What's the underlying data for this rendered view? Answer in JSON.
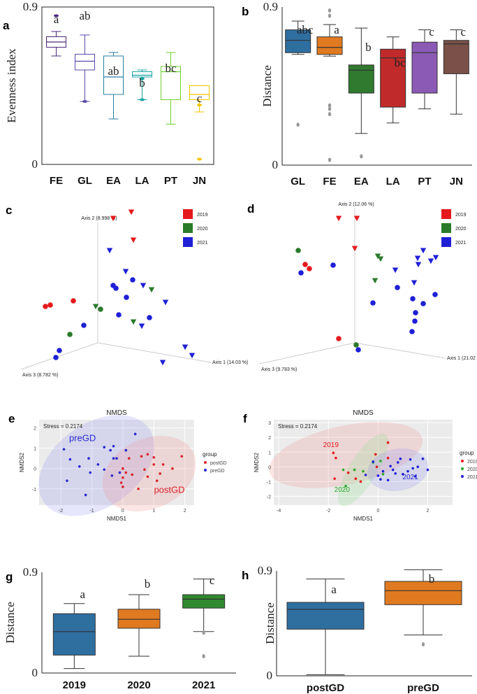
{
  "colors": {
    "FE": "#4b2a7a",
    "GL": "#5b4aa8",
    "EA": "#2a7fa0",
    "LA": "#1aa3a3",
    "PT": "#6ed12e",
    "JN": "#f2c400",
    "b_GL": "#2e6fa0",
    "b_FE": "#e07a20",
    "b_EA": "#2f7a2f",
    "b_LA": "#c02a2a",
    "b_PT": "#8a5ab5",
    "b_JN": "#7a5048",
    "y2019": "#e41a1c",
    "y2020": "#2a7a2a",
    "y2021": "#1f1fd6",
    "post": "#d8232a",
    "pre": "#2828d0",
    "g2019": "#2e6fa0",
    "g2020": "#e07a20",
    "g2021": "#2f8a2f",
    "postGD": "#2e6fa0",
    "preGD": "#e07a20"
  },
  "panels": {
    "a": "a",
    "b": "b",
    "c": "c",
    "d": "d",
    "e": "e",
    "f": "f",
    "g": "g",
    "h": "h"
  },
  "chart_data": [
    {
      "id": "a",
      "type": "box",
      "ylabel": "Evenness index",
      "yticks": [
        "0.9",
        "0"
      ],
      "ylim": [
        0,
        0.9
      ],
      "categories": [
        "FE",
        "GL",
        "EA",
        "LA",
        "PT",
        "JN"
      ],
      "letters": [
        "a",
        "ab",
        "ab",
        "b",
        "bc",
        "c"
      ],
      "boxes": [
        {
          "min": 0.62,
          "q1": 0.67,
          "median": 0.7,
          "q3": 0.73,
          "max": 0.76,
          "outliers": [
            0.85
          ]
        },
        {
          "min": 0.36,
          "q1": 0.54,
          "median": 0.59,
          "q3": 0.63,
          "max": 0.74,
          "outliers": [
            0.36
          ]
        },
        {
          "min": 0.26,
          "q1": 0.4,
          "median": 0.5,
          "q3": 0.62,
          "max": 0.64,
          "outliers": []
        },
        {
          "min": 0.37,
          "q1": 0.5,
          "median": 0.51,
          "q3": 0.53,
          "max": 0.54,
          "outliers": [
            0.37,
            0.49
          ]
        },
        {
          "min": 0.23,
          "q1": 0.37,
          "median": 0.53,
          "q3": 0.56,
          "max": 0.64,
          "outliers": []
        },
        {
          "min": 0.3,
          "q1": 0.37,
          "median": 0.4,
          "q3": 0.45,
          "max": 0.45,
          "outliers": [
            0.34,
            0.03
          ]
        }
      ]
    },
    {
      "id": "b",
      "type": "box",
      "ylabel": "Distance",
      "yticks": [
        "0.9",
        "0"
      ],
      "ylim": [
        0,
        0.9
      ],
      "categories": [
        "GL",
        "FE",
        "EA",
        "LA",
        "PT",
        "JN"
      ],
      "letters": [
        "abc",
        "a",
        "b",
        "bc",
        "c",
        "c"
      ],
      "boxes": [
        {
          "min": 0.63,
          "q1": 0.64,
          "median": 0.71,
          "q3": 0.77,
          "max": 0.82,
          "outliers": [
            0.23
          ]
        },
        {
          "min": 0.62,
          "q1": 0.63,
          "median": 0.67,
          "q3": 0.73,
          "max": 0.8,
          "outliers": [
            0.88,
            0.85,
            0.34,
            0.32,
            0.29,
            0.03
          ]
        },
        {
          "min": 0.18,
          "q1": 0.41,
          "median": 0.54,
          "q3": 0.57,
          "max": 0.78,
          "outliers": [
            0.05
          ]
        },
        {
          "min": 0.24,
          "q1": 0.33,
          "median": 0.61,
          "q3": 0.66,
          "max": 0.73,
          "outliers": []
        },
        {
          "min": 0.32,
          "q1": 0.41,
          "median": 0.64,
          "q3": 0.7,
          "max": 0.77,
          "outliers": []
        },
        {
          "min": 0.29,
          "q1": 0.52,
          "median": 0.69,
          "q3": 0.71,
          "max": 0.77,
          "outliers": []
        }
      ]
    },
    {
      "id": "c",
      "type": "scatter3d",
      "axes": [
        "Axis 2 (8.998 %)",
        "Axis 3 (8.782 %)",
        "Axis 1 (14.03 %)"
      ],
      "legend": [
        "2019",
        "2020",
        "2021"
      ]
    },
    {
      "id": "d",
      "type": "scatter3d",
      "axes": [
        "Axis 2 (12.06 %)",
        "Axis 3 (9.783 %)",
        "Axis 1 (21.02 %)"
      ],
      "legend": [
        "2019",
        "2020",
        "2021"
      ]
    },
    {
      "id": "e",
      "type": "scatter",
      "title": "NMDS",
      "stress": "Stress = 0.2174",
      "xlabel": "NMDS1",
      "ylabel": "NMDS2",
      "xticks": [
        -2,
        -1,
        0,
        1,
        2
      ],
      "yticks": [
        -1,
        0,
        1,
        2
      ],
      "xlim": [
        -2.7,
        2.3
      ],
      "ylim": [
        -1.8,
        2.4
      ],
      "legend_title": "group",
      "series": [
        {
          "name": "postGD",
          "points": [
            [
              0.0,
              -0.9
            ],
            [
              -0.05,
              -0.7
            ],
            [
              0.0,
              -0.45
            ],
            [
              0.1,
              -0.2
            ],
            [
              0.0,
              0.0
            ],
            [
              0.2,
              0.5
            ],
            [
              0.3,
              -0.3
            ],
            [
              0.5,
              -1.0
            ],
            [
              0.8,
              -0.4
            ],
            [
              0.7,
              -0.05
            ],
            [
              1.0,
              0.2
            ],
            [
              1.1,
              -0.6
            ],
            [
              1.2,
              -0.25
            ],
            [
              1.3,
              0.2
            ],
            [
              1.6,
              0.0
            ],
            [
              1.9,
              0.6
            ],
            [
              0.6,
              0.6
            ],
            [
              1.0,
              0.55
            ],
            [
              0.8,
              0.7
            ]
          ]
        },
        {
          "name": "preGD",
          "points": [
            [
              -1.9,
              0.95
            ],
            [
              -1.8,
              -0.6
            ],
            [
              -1.7,
              0.45
            ],
            [
              -1.4,
              0.1
            ],
            [
              -1.1,
              0.5
            ],
            [
              -1.05,
              -0.2
            ],
            [
              -1.2,
              -1.3
            ],
            [
              -0.8,
              0.2
            ],
            [
              -0.6,
              1.05
            ],
            [
              -0.4,
              0.9
            ],
            [
              -0.3,
              1.1
            ],
            [
              -0.6,
              -0.05
            ],
            [
              -0.3,
              0.5
            ],
            [
              -0.35,
              -0.35
            ],
            [
              -0.1,
              -0.2
            ],
            [
              0.1,
              0.9
            ],
            [
              0.4,
              1.7
            ],
            [
              -0.2,
              0.5
            ]
          ]
        }
      ],
      "group_labels": [
        "preGD",
        "postGD"
      ]
    },
    {
      "id": "f",
      "type": "scatter",
      "title": "NMDS",
      "stress": "Stress = 0.2174",
      "xlabel": "NMDS1",
      "ylabel": "NMDS2",
      "xticks": [
        -4,
        -2,
        0,
        2
      ],
      "yticks": [
        -2,
        -1,
        0,
        1,
        2,
        3
      ],
      "xlim": [
        -4.2,
        3.0
      ],
      "ylim": [
        -2.6,
        3.2
      ],
      "legend_title": "group",
      "series": [
        {
          "name": "2019",
          "points": [
            [
              -1.8,
              0.95
            ],
            [
              -1.7,
              0.6
            ],
            [
              -1.75,
              -0.8
            ],
            [
              -1.2,
              -0.4
            ],
            [
              -0.9,
              -0.8
            ],
            [
              -0.7,
              -1.0
            ],
            [
              -0.1,
              0.85
            ],
            [
              0.4,
              1.65
            ],
            [
              0.4,
              0.6
            ],
            [
              -0.05,
              0.0
            ]
          ]
        },
        {
          "name": "2020",
          "points": [
            [
              -1.4,
              -0.2
            ],
            [
              -0.95,
              -0.2
            ],
            [
              -0.6,
              -0.3
            ],
            [
              -0.2,
              0.3
            ],
            [
              0.1,
              0.4
            ],
            [
              -1.3,
              -1.3
            ],
            [
              0.2,
              -0.5
            ]
          ]
        },
        {
          "name": "2021",
          "points": [
            [
              -0.5,
              -0.55
            ],
            [
              -0.2,
              0.35
            ],
            [
              0.0,
              -0.6
            ],
            [
              0.2,
              -0.3
            ],
            [
              0.4,
              -0.9
            ],
            [
              0.5,
              0.05
            ],
            [
              0.7,
              -0.45
            ],
            [
              0.8,
              0.3
            ],
            [
              1.0,
              -0.5
            ],
            [
              1.2,
              -0.3
            ],
            [
              1.3,
              0.5
            ],
            [
              1.4,
              -0.1
            ],
            [
              1.5,
              -0.65
            ],
            [
              1.6,
              0.0
            ],
            [
              1.8,
              0.55
            ],
            [
              2.0,
              -0.2
            ],
            [
              0.9,
              0.55
            ],
            [
              0.1,
              -0.85
            ],
            [
              0.6,
              -0.2
            ]
          ]
        }
      ],
      "group_labels": [
        "2019",
        "2020",
        "2021"
      ]
    },
    {
      "id": "g",
      "type": "box",
      "ylabel": "Distance",
      "yticks": [
        "0.9",
        "0"
      ],
      "ylim": [
        0,
        0.9
      ],
      "categories": [
        "2019",
        "2020",
        "2021"
      ],
      "letters": [
        "a",
        "b",
        "c"
      ],
      "boxes": [
        {
          "min": 0.04,
          "q1": 0.16,
          "median": 0.37,
          "q3": 0.53,
          "max": 0.62,
          "outliers": []
        },
        {
          "min": 0.15,
          "q1": 0.4,
          "median": 0.48,
          "q3": 0.57,
          "max": 0.7,
          "outliers": []
        },
        {
          "min": 0.37,
          "q1": 0.58,
          "median": 0.66,
          "q3": 0.7,
          "max": 0.84,
          "outliers": [
            0.36,
            0.15
          ]
        }
      ]
    },
    {
      "id": "h",
      "type": "box",
      "ylabel": "Distance",
      "yticks": [
        "0.9",
        "0"
      ],
      "ylim": [
        0,
        0.9
      ],
      "categories": [
        "postGD",
        "preGD"
      ],
      "letters": [
        "a",
        "b"
      ],
      "boxes": [
        {
          "min": 0.01,
          "q1": 0.4,
          "median": 0.57,
          "q3": 0.63,
          "max": 0.83,
          "outliers": []
        },
        {
          "min": 0.35,
          "q1": 0.61,
          "median": 0.73,
          "q3": 0.81,
          "max": 0.91,
          "outliers": [
            0.27
          ]
        }
      ]
    }
  ]
}
